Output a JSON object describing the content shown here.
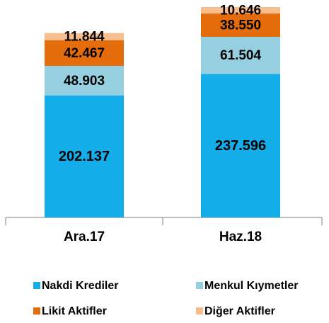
{
  "chart_data": {
    "type": "stacked_bar",
    "categories": [
      "Ara.17",
      "Haz.18"
    ],
    "series": [
      {
        "name": "Nakdi Krediler",
        "color": "#13aeea",
        "values": [
          202137,
          237596
        ],
        "value_labels": [
          "202.137",
          "237.596"
        ]
      },
      {
        "name": "Menkul Kıymetler",
        "color": "#95cfe0",
        "values": [
          48903,
          61504
        ],
        "value_labels": [
          "48.903",
          "61.504"
        ]
      },
      {
        "name": "Likit Aktifler",
        "color": "#e46c0a",
        "values": [
          42467,
          38550
        ],
        "value_labels": [
          "42.467",
          "38.550"
        ]
      },
      {
        "name": "Diğer Aktifler",
        "color": "#f9be8e",
        "values": [
          11844,
          10646
        ],
        "value_labels": [
          "11.844",
          "10.646"
        ]
      }
    ]
  }
}
